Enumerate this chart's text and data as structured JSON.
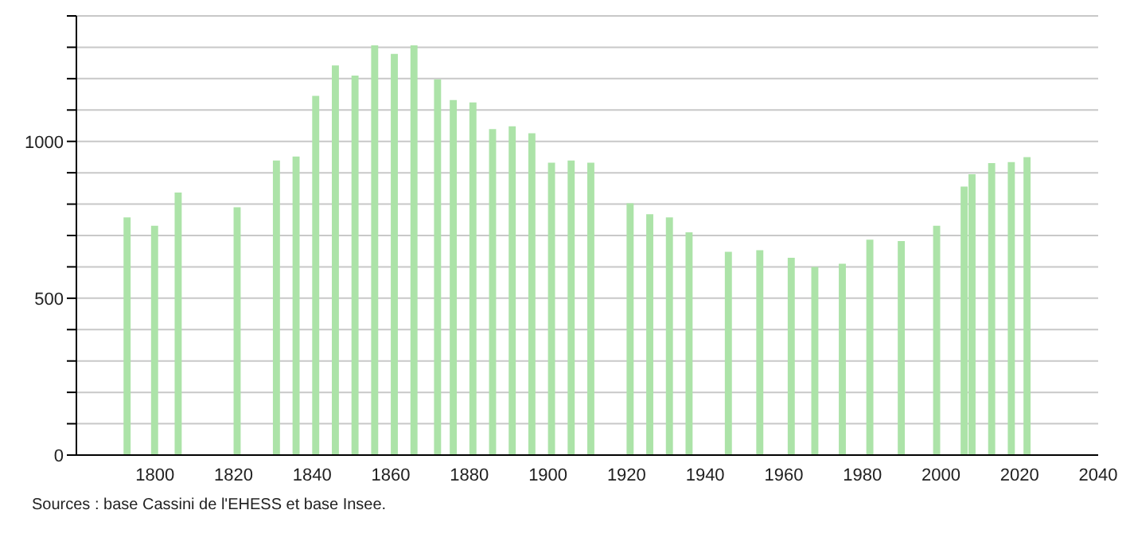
{
  "chart_data": {
    "type": "bar",
    "x": [
      1793,
      1800,
      1806,
      1821,
      1831,
      1836,
      1841,
      1846,
      1851,
      1856,
      1861,
      1866,
      1872,
      1876,
      1881,
      1886,
      1891,
      1896,
      1901,
      1906,
      1911,
      1921,
      1926,
      1931,
      1936,
      1946,
      1954,
      1962,
      1968,
      1975,
      1982,
      1990,
      1999,
      2006,
      2008,
      2013,
      2018,
      2022
    ],
    "values": [
      758,
      731,
      837,
      790,
      939,
      952,
      1145,
      1242,
      1210,
      1306,
      1279,
      1306,
      1198,
      1132,
      1124,
      1039,
      1048,
      1026,
      932,
      939,
      932,
      803,
      768,
      758,
      710,
      648,
      653,
      629,
      600,
      610,
      687,
      682,
      731,
      856,
      895,
      931,
      934,
      950
    ],
    "color": "#ace3a8",
    "xlim": [
      1780,
      2040
    ],
    "xticks": [
      1800,
      1820,
      1840,
      1860,
      1880,
      1900,
      1920,
      1940,
      1960,
      1980,
      2000,
      2020,
      2040
    ],
    "ylim": [
      0,
      1400
    ],
    "yticks": [
      0,
      {
        "value": 100,
        "label": null
      },
      {
        "value": 200,
        "label": null
      },
      {
        "value": 300,
        "label": null
      },
      {
        "value": 400,
        "label": null
      },
      500,
      {
        "value": 600,
        "label": null
      },
      {
        "value": 700,
        "label": null
      },
      {
        "value": 800,
        "label": null
      },
      {
        "value": 900,
        "label": null
      },
      1000,
      {
        "value": 1100,
        "label": null
      },
      {
        "value": 1200,
        "label": null
      },
      {
        "value": 1300,
        "label": null
      },
      {
        "value": 1400,
        "label": null
      }
    ],
    "grid": "y",
    "annotations": [
      "Sources : base Cassini de l'EHESS et base Insee."
    ]
  }
}
